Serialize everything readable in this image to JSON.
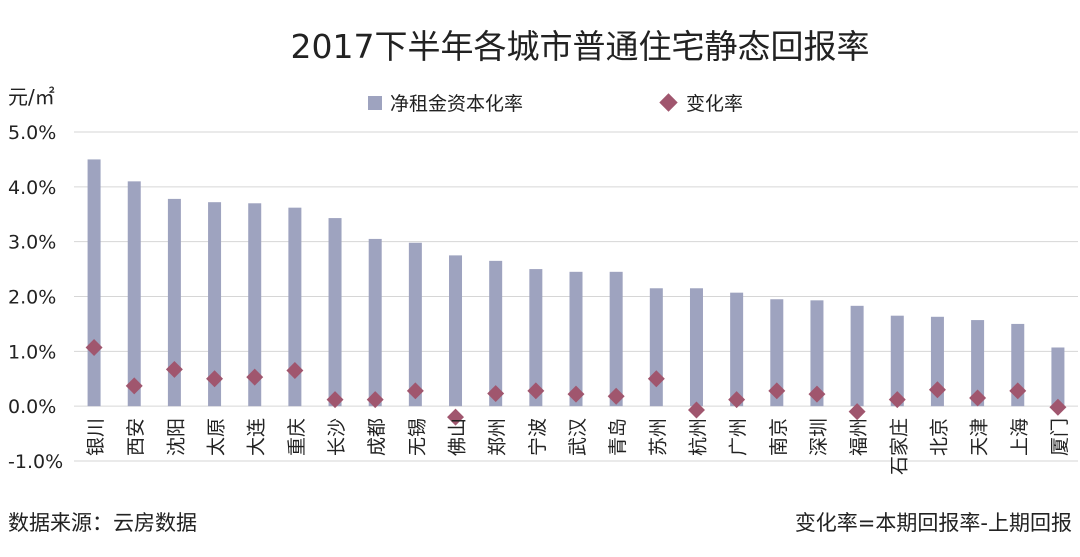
{
  "chart_data": {
    "type": "bar",
    "title": "2017下半年各城市普通住宅静态回报率",
    "ylabel": "元/㎡",
    "ylim": [
      -1.0,
      5.0
    ],
    "y_ticks": [
      "-1.0%",
      "0.0%",
      "1.0%",
      "2.0%",
      "3.0%",
      "4.0%",
      "5.0%"
    ],
    "grid": true,
    "legend_position": "top",
    "categories": [
      "银川",
      "西安",
      "沈阳",
      "太原",
      "大连",
      "重庆",
      "长沙",
      "成都",
      "无锡",
      "佛山",
      "郑州",
      "宁波",
      "武汉",
      "青岛",
      "苏州",
      "杭州",
      "广州",
      "南京",
      "深圳",
      "福州",
      "石家庄",
      "北京",
      "天津",
      "上海",
      "厦门"
    ],
    "series": [
      {
        "name": "净租金资本化率",
        "kind": "bar",
        "color": "#9ea3bf",
        "values": [
          4.5,
          4.1,
          3.78,
          3.72,
          3.7,
          3.62,
          3.43,
          3.05,
          2.98,
          2.75,
          2.65,
          2.5,
          2.45,
          2.45,
          2.15,
          2.15,
          2.07,
          1.95,
          1.93,
          1.83,
          1.65,
          1.63,
          1.57,
          1.5,
          1.07
        ]
      },
      {
        "name": "变化率",
        "kind": "marker",
        "color": "#a0566e",
        "values": [
          1.07,
          0.37,
          0.67,
          0.5,
          0.53,
          0.65,
          0.12,
          0.12,
          0.28,
          -0.2,
          0.23,
          0.28,
          0.22,
          0.18,
          0.5,
          -0.07,
          0.12,
          0.28,
          0.22,
          -0.1,
          0.12,
          0.3,
          0.15,
          0.28,
          -0.02
        ]
      }
    ]
  },
  "footer": {
    "source": "数据来源：云房数据",
    "note": "变化率=本期回报率-上期回报"
  }
}
